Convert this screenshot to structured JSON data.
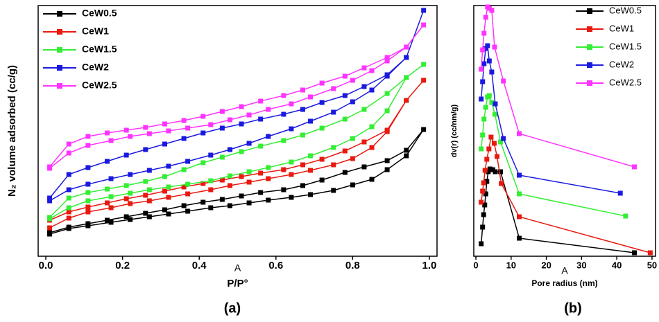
{
  "chart_data": [
    {
      "type": "line",
      "ylabel": "N₂ volume adsorbed (cc/g)",
      "xlabel": "P/P°",
      "annotation": "A",
      "panel_label": "(a)",
      "xlim": [
        -0.02,
        1.02
      ],
      "ylim": [
        0,
        362
      ],
      "xticks": [
        {
          "value": 0,
          "label": "0.0"
        },
        {
          "value": 0.2,
          "label": "0.2"
        },
        {
          "value": 0.4,
          "label": "0.4"
        },
        {
          "value": 0.6,
          "label": "0.6"
        },
        {
          "value": 0.8,
          "label": "0.8"
        },
        {
          "value": 1,
          "label": "1.0"
        }
      ],
      "legend": "upper left",
      "x": [
        0.01,
        0.06,
        0.11,
        0.17,
        0.22,
        0.27,
        0.32,
        0.37,
        0.43,
        0.48,
        0.53,
        0.58,
        0.64,
        0.69,
        0.75,
        0.8,
        0.85,
        0.89,
        0.94,
        0.985,
        0.94,
        0.89,
        0.83,
        0.78,
        0.72,
        0.67,
        0.62,
        0.56,
        0.51,
        0.46,
        0.41,
        0.36,
        0.31,
        0.26,
        0.21,
        0.16,
        0.11,
        0.06,
        0.01
      ],
      "series": [
        {
          "name": "CeW0.5",
          "color": "#000000",
          "values": [
            32,
            40,
            44,
            49,
            53,
            57,
            61,
            65,
            70,
            73,
            77,
            81,
            85,
            89,
            95,
            103,
            111,
            125,
            145,
            183,
            153,
            138,
            129,
            121,
            110,
            102,
            96,
            92,
            87,
            82,
            78,
            73,
            67,
            62,
            57,
            52,
            47,
            42,
            34
          ]
        },
        {
          "name": "CeW1",
          "color": "#e8190f",
          "values": [
            41,
            55,
            64,
            70,
            76,
            80,
            85,
            90,
            96,
            102,
            107,
            112,
            118,
            124,
            132,
            141,
            157,
            180,
            225,
            254,
            225,
            182,
            165,
            152,
            140,
            132,
            125,
            120,
            115,
            110,
            105,
            100,
            94,
            88,
            83,
            77,
            71,
            64,
            52
          ]
        },
        {
          "name": "CeW1.5",
          "color": "#33ee33",
          "values": [
            54,
            70,
            80,
            86,
            91,
            96,
            100,
            104,
            109,
            116,
            122,
            128,
            136,
            145,
            157,
            170,
            187,
            210,
            258,
            277,
            258,
            235,
            212,
            198,
            185,
            175,
            167,
            159,
            151,
            143,
            135,
            125,
            115,
            108,
            102,
            97,
            92,
            84,
            56
          ]
        },
        {
          "name": "CeW2",
          "color": "#1a1adf",
          "values": [
            80,
            96,
            104,
            112,
            118,
            124,
            130,
            137,
            146,
            154,
            163,
            173,
            184,
            195,
            208,
            223,
            240,
            260,
            287,
            355,
            287,
            262,
            245,
            232,
            222,
            212,
            205,
            198,
            191,
            185,
            178,
            170,
            162,
            154,
            146,
            137,
            128,
            118,
            84
          ]
        },
        {
          "name": "CeW2.5",
          "color": "#ff33ff",
          "values": [
            127,
            149,
            160,
            167,
            173,
            177,
            181,
            185,
            190,
            197,
            204,
            212,
            220,
            230,
            242,
            254,
            268,
            282,
            302,
            334,
            302,
            287,
            272,
            260,
            250,
            240,
            232,
            224,
            216,
            209,
            202,
            196,
            191,
            186,
            182,
            178,
            173,
            162,
            129
          ]
        }
      ]
    },
    {
      "type": "line",
      "ylabel": "dv(r) (cc/nm/g)",
      "xlabel": "Pore radius (nm)",
      "annotation": "A",
      "panel_label": "(b)",
      "xlim": [
        -0.6,
        51
      ],
      "ylim": [
        0,
        362
      ],
      "xticks": [
        0,
        10,
        20,
        30,
        40,
        50
      ],
      "legend": "upper right",
      "series": [
        {
          "name": "CeW0.5",
          "color": "#000000",
          "x": [
            1.5,
            1.9,
            2.2,
            2.5,
            2.8,
            3.1,
            3.5,
            4,
            4.8,
            5.5,
            7,
            12.3,
            45
          ],
          "values": [
            18,
            42,
            60,
            74,
            90,
            108,
            122,
            126,
            125,
            122,
            122,
            26,
            5
          ]
        },
        {
          "name": "CeW1",
          "color": "#e8190f",
          "x": [
            1.5,
            1.9,
            2.2,
            2.6,
            3.1,
            3.7,
            4.3,
            5.2,
            6,
            7.2,
            12.3,
            49.5
          ],
          "values": [
            78,
            94,
            106,
            124,
            140,
            155,
            172,
            163,
            144,
            105,
            57,
            5
          ]
        },
        {
          "name": "CeW1.5",
          "color": "#33ee33",
          "x": [
            1.5,
            1.9,
            2.3,
            2.8,
            3.3,
            3.8,
            4.5,
            5.4,
            7,
            12.3,
            42.5
          ],
          "values": [
            155,
            175,
            198,
            215,
            230,
            232,
            222,
            205,
            165,
            90,
            58
          ]
        },
        {
          "name": "CeW2",
          "color": "#1a1adf",
          "x": [
            1.5,
            1.9,
            2.3,
            2.8,
            3.3,
            3.8,
            4.5,
            5.5,
            7.8,
            12.3,
            41
          ],
          "values": [
            227,
            252,
            278,
            300,
            304,
            282,
            266,
            220,
            170,
            117,
            91
          ]
        },
        {
          "name": "CeW2.5",
          "color": "#ff33ff",
          "x": [
            1.5,
            1.9,
            2.3,
            2.8,
            3.3,
            3.8,
            4.5,
            5.3,
            7.8,
            12.3,
            45
          ],
          "values": [
            270,
            298,
            322,
            345,
            360,
            358,
            355,
            302,
            253,
            177,
            129
          ]
        }
      ]
    }
  ]
}
